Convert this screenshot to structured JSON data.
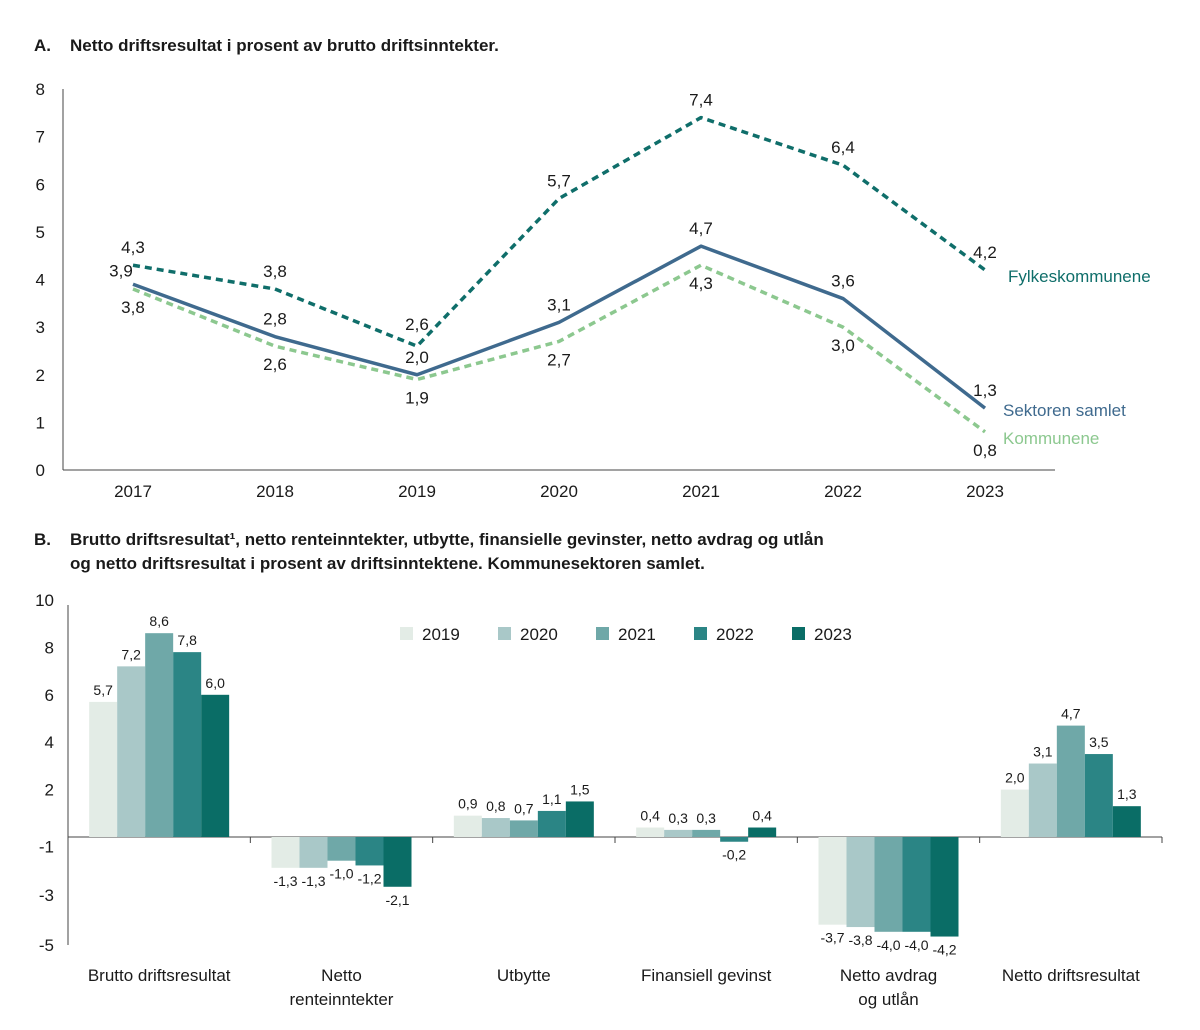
{
  "panel_a": {
    "label": "A.",
    "title": "Netto driftsresultat  i prosent av brutto driftsinntekter."
  },
  "panel_b": {
    "label": "B.",
    "title_line1": "Brutto driftsresultat¹, netto renteinntekter, utbytte, finansielle gevinster, netto avdrag og utlån",
    "title_line2": "og netto driftsresultat i prosent av driftsinntektene. Kommunesektoren samlet."
  },
  "colors": {
    "fylke": "#0f6e6a",
    "sektor": "#3f6a8e",
    "kommune": "#8cc88f",
    "axis": "#444444",
    "y2019": "#e3ece6",
    "y2020": "#a9c8c8",
    "y2021": "#6fa8a8",
    "y2022": "#2b8585",
    "y2023": "#0a6d66"
  },
  "chart_data": [
    {
      "type": "line",
      "title": "Netto driftsresultat  i prosent av brutto driftsinntekter.",
      "x": [
        "2017",
        "2018",
        "2019",
        "2020",
        "2021",
        "2022",
        "2023"
      ],
      "ylim": [
        0,
        8
      ],
      "yticks": [
        "0",
        "1",
        "2",
        "3",
        "4",
        "5",
        "6",
        "7",
        "8"
      ],
      "series": [
        {
          "name": "Fylkeskommunene",
          "style": "dashed",
          "values": [
            4.3,
            3.8,
            2.6,
            5.7,
            7.4,
            6.4,
            4.2
          ],
          "labels": [
            "4,3",
            "3,8",
            "2,6",
            "5,7",
            "7,4",
            "6,4",
            "4,2"
          ]
        },
        {
          "name": "Sektoren samlet",
          "style": "solid",
          "values": [
            3.9,
            2.8,
            2.0,
            3.1,
            4.7,
            3.6,
            1.3
          ],
          "labels": [
            "3,9",
            "2,8",
            "2,0",
            "3,1",
            "4,7",
            "3,6",
            "1,3"
          ]
        },
        {
          "name": "Kommunene",
          "style": "dashed",
          "values": [
            3.8,
            2.6,
            1.9,
            2.7,
            4.3,
            3.0,
            0.8
          ],
          "labels": [
            "3,8",
            "2,6",
            "1,9",
            "2,7",
            "4,3",
            "3,0",
            "0,8"
          ]
        }
      ]
    },
    {
      "type": "bar",
      "title": "Brutto driftsresultat¹, netto renteinntekter, utbytte, finansielle gevinster, netto avdrag og utlån og netto driftsresultat i prosent av driftsinntektene. Kommunesektoren samlet.",
      "categories": [
        [
          "Brutto driftsresultat"
        ],
        [
          "Netto",
          "renteinntekter"
        ],
        [
          "Utbytte"
        ],
        [
          "Finansiell gevinst"
        ],
        [
          "Netto avdrag",
          "og utlån"
        ],
        [
          "Netto driftsresultat"
        ]
      ],
      "ylim": [
        -5,
        10
      ],
      "yticks": [
        "10",
        "8",
        "6",
        "4",
        "2",
        "-1",
        "-3",
        "-5"
      ],
      "series": [
        {
          "name": "2019",
          "values": [
            5.7,
            -1.3,
            0.9,
            0.4,
            -3.7,
            2.0
          ],
          "labels": [
            "5,7",
            "-1,3",
            "0,9",
            "0,4",
            "-3,7",
            "2,0"
          ]
        },
        {
          "name": "2020",
          "values": [
            7.2,
            -1.3,
            0.8,
            0.3,
            -3.8,
            3.1
          ],
          "labels": [
            "7,2",
            "-1,3",
            "0,8",
            "0,3",
            "-3,8",
            "3,1"
          ]
        },
        {
          "name": "2021",
          "values": [
            8.6,
            -1.0,
            0.7,
            0.3,
            -4.0,
            4.7
          ],
          "labels": [
            "8,6",
            "-1,0",
            "0,7",
            "0,3",
            "-4,0",
            "4,7"
          ]
        },
        {
          "name": "2022",
          "values": [
            7.8,
            -1.2,
            1.1,
            -0.2,
            -4.0,
            3.5
          ],
          "labels": [
            "7,8",
            "-1,2",
            "1,1",
            "-0,2",
            "-4,0",
            "3,5"
          ]
        },
        {
          "name": "2023",
          "values": [
            6.0,
            -2.1,
            1.5,
            0.4,
            -4.2,
            1.3
          ],
          "labels": [
            "6,0",
            "-2,1",
            "1,5",
            "0,4",
            "-4,2",
            "1,3"
          ]
        }
      ],
      "legend": "top-center"
    }
  ]
}
